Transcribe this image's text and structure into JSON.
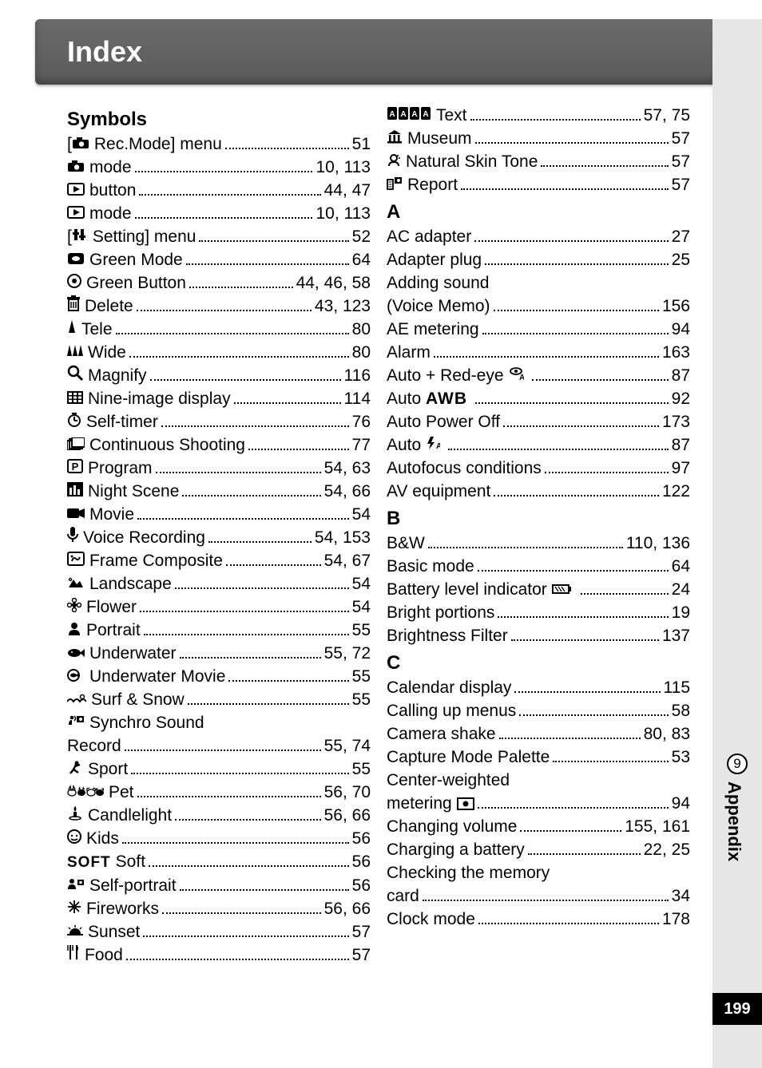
{
  "header": {
    "title": "Index"
  },
  "sidebar": {
    "chapter_num": "9",
    "chapter_label": "Appendix",
    "page_number": "199"
  },
  "left": {
    "section": "Symbols",
    "entries": [
      {
        "icon": "camera-bracket",
        "label": "Rec.Mode] menu",
        "prefix": "[",
        "pages": "51"
      },
      {
        "icon": "camera",
        "label": "mode",
        "pages": "10, 113"
      },
      {
        "icon": "play",
        "label": "button",
        "pages": "44, 47"
      },
      {
        "icon": "play",
        "label": "mode",
        "pages": "10, 113"
      },
      {
        "icon": "tools-bracket",
        "label": "Setting] menu",
        "prefix": "[",
        "pages": "52"
      },
      {
        "icon": "green-square",
        "label": "Green Mode",
        "pages": "64"
      },
      {
        "icon": "green-dot",
        "label": "Green Button",
        "pages": "44, 46, 58"
      },
      {
        "icon": "trash",
        "label": "Delete",
        "pages": "43, 123"
      },
      {
        "icon": "tele",
        "label": "Tele",
        "pages": "80"
      },
      {
        "icon": "wide",
        "label": "Wide",
        "pages": "80"
      },
      {
        "icon": "magnify",
        "label": "Magnify",
        "pages": "116"
      },
      {
        "icon": "nine",
        "label": "Nine-image display",
        "pages": "114"
      },
      {
        "icon": "timer",
        "label": "Self-timer",
        "pages": "76"
      },
      {
        "icon": "burst",
        "label": "Continuous Shooting",
        "pages": "77"
      },
      {
        "icon": "p-box",
        "label": "Program",
        "pages": "54, 63"
      },
      {
        "icon": "night",
        "label": "Night Scene",
        "pages": "54, 66"
      },
      {
        "icon": "movie",
        "label": "Movie",
        "pages": "54"
      },
      {
        "icon": "mic",
        "label": "Voice Recording",
        "pages": "54, 153"
      },
      {
        "icon": "frame",
        "label": "Frame Composite",
        "pages": "54, 67"
      },
      {
        "icon": "landscape",
        "label": "Landscape",
        "pages": "54"
      },
      {
        "icon": "flower",
        "label": "Flower",
        "pages": "54"
      },
      {
        "icon": "portrait",
        "label": "Portrait",
        "pages": "55"
      },
      {
        "icon": "fish",
        "label": "Underwater",
        "pages": "55, 72"
      },
      {
        "icon": "fish-movie",
        "label": "Underwater Movie",
        "pages": "55"
      },
      {
        "icon": "surf",
        "label": "Surf & Snow",
        "pages": "55"
      },
      {
        "icon": "synchro",
        "label": "Synchro Sound",
        "wrap": true
      },
      {
        "cont": true,
        "label": "Record",
        "pages": "55, 74"
      },
      {
        "icon": "sport",
        "label": "Sport",
        "pages": "55"
      },
      {
        "icon": "pets",
        "label": "Pet",
        "pages": "56, 70"
      },
      {
        "icon": "candle",
        "label": "Candlelight",
        "pages": "56, 66"
      },
      {
        "icon": "kids",
        "label": "Kids",
        "pages": "56"
      },
      {
        "icon": "soft",
        "label": "Soft",
        "pages": "56"
      },
      {
        "icon": "selfp",
        "label": "Self-portrait",
        "pages": "56"
      },
      {
        "icon": "fireworks",
        "label": "Fireworks",
        "pages": "56, 66"
      },
      {
        "icon": "sunset",
        "label": "Sunset",
        "pages": "57"
      },
      {
        "icon": "food",
        "label": "Food",
        "pages": "57"
      }
    ]
  },
  "right": {
    "pre_entries": [
      {
        "icon": "text4",
        "label": "Text",
        "pages": "57, 75"
      },
      {
        "icon": "museum",
        "label": "Museum",
        "pages": "57"
      },
      {
        "icon": "skin",
        "label": "Natural Skin Tone",
        "pages": "57"
      },
      {
        "icon": "report",
        "label": "Report",
        "pages": "57"
      }
    ],
    "sections": [
      {
        "head": "A",
        "entries": [
          {
            "label": "AC adapter",
            "pages": "27"
          },
          {
            "label": "Adapter plug",
            "pages": "25"
          },
          {
            "label": "Adding sound",
            "wrap": true
          },
          {
            "cont": true,
            "label": "(Voice Memo)",
            "pages": "156"
          },
          {
            "label": "AE metering",
            "pages": "94"
          },
          {
            "label": "Alarm",
            "pages": "163"
          },
          {
            "label": "Auto + Red-eye",
            "trail_icon": "redeye",
            "pages": "87"
          },
          {
            "label": "Auto",
            "trail_icon": "awb",
            "pages": "92"
          },
          {
            "label": "Auto Power Off",
            "pages": "173"
          },
          {
            "label": "Auto",
            "trail_icon": "flashA",
            "pages": "87"
          },
          {
            "label": "Autofocus conditions",
            "pages": "97"
          },
          {
            "label": "AV equipment",
            "pages": "122"
          }
        ]
      },
      {
        "head": "B",
        "entries": [
          {
            "label": "B&W",
            "pages": "110, 136"
          },
          {
            "label": "Basic mode",
            "pages": "64"
          },
          {
            "label": "Battery level indicator",
            "trail_icon": "battery",
            "pages": "24"
          },
          {
            "label": "Bright portions",
            "pages": "19"
          },
          {
            "label": "Brightness Filter",
            "pages": "137"
          }
        ]
      },
      {
        "head": "C",
        "entries": [
          {
            "label": "Calendar display",
            "pages": "115"
          },
          {
            "label": "Calling up menus",
            "pages": "58"
          },
          {
            "label": "Camera shake",
            "pages": "80, 83"
          },
          {
            "label": "Capture Mode Palette",
            "pages": "53"
          },
          {
            "label": "Center-weighted",
            "wrap": true
          },
          {
            "cont": true,
            "label": "metering",
            "trail_icon": "center",
            "pages": "94"
          },
          {
            "label": "Changing volume",
            "pages": "155, 161"
          },
          {
            "label": "Charging a battery",
            "pages": "22, 25"
          },
          {
            "label": "Checking the memory",
            "wrap": true
          },
          {
            "cont": true,
            "label": "card",
            "pages": "34"
          },
          {
            "label": "Clock mode",
            "pages": "178"
          }
        ]
      }
    ]
  }
}
